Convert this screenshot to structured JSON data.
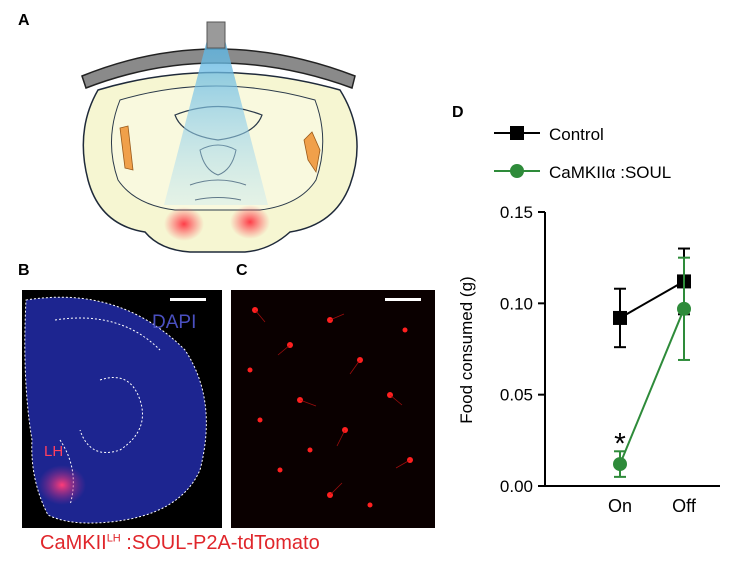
{
  "panels": {
    "a": "A",
    "b": "B",
    "c": "C",
    "d": "D"
  },
  "panel_b": {
    "stain_label": "DAPI",
    "region_label": "LH"
  },
  "caption": {
    "prefix": "CaMKII",
    "superscript": "LH",
    "suffix": " :SOUL-P2A-tdTomato"
  },
  "colors": {
    "control": "#000000",
    "soul": "#2e8b3a",
    "caption": "#e0262b",
    "dapi": "#2b2fa8",
    "tdtomato": "#ff2020"
  },
  "chart_data": {
    "type": "line",
    "categories": [
      "On",
      "Off"
    ],
    "ylabel": "Food consumed (g)",
    "xlabel": "",
    "ylim": [
      0,
      0.15
    ],
    "yticks": [
      "0.00",
      "0.05",
      "0.10",
      "0.15"
    ],
    "legend_position": "top",
    "series": [
      {
        "name": "Control",
        "marker": "square",
        "color": "#000000",
        "values": [
          0.092,
          0.112
        ],
        "errors": [
          0.016,
          0.018
        ]
      },
      {
        "name": "CaMKIIα :SOUL",
        "marker": "circle",
        "color": "#2e8b3a",
        "values": [
          0.012,
          0.097
        ],
        "errors": [
          0.007,
          0.028
        ]
      }
    ],
    "annotations": [
      {
        "text": "*",
        "category": "On"
      }
    ]
  }
}
